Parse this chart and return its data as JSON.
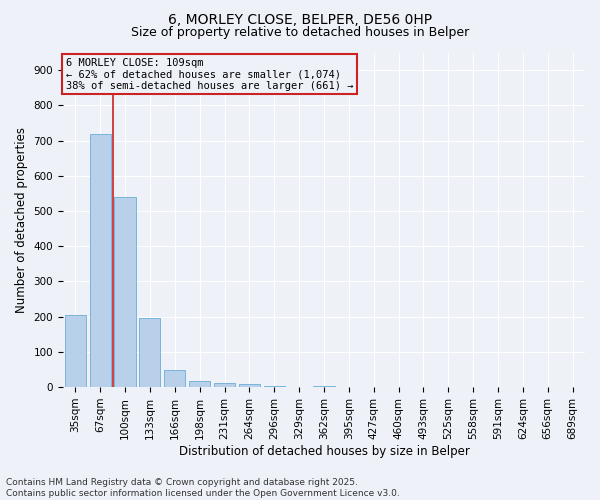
{
  "title_line1": "6, MORLEY CLOSE, BELPER, DE56 0HP",
  "title_line2": "Size of property relative to detached houses in Belper",
  "xlabel": "Distribution of detached houses by size in Belper",
  "ylabel": "Number of detached properties",
  "categories": [
    "35sqm",
    "67sqm",
    "100sqm",
    "133sqm",
    "166sqm",
    "198sqm",
    "231sqm",
    "264sqm",
    "296sqm",
    "329sqm",
    "362sqm",
    "395sqm",
    "427sqm",
    "460sqm",
    "493sqm",
    "525sqm",
    "558sqm",
    "591sqm",
    "624sqm",
    "656sqm",
    "689sqm"
  ],
  "values": [
    205,
    720,
    540,
    195,
    48,
    18,
    13,
    9,
    3,
    0,
    3,
    0,
    0,
    0,
    0,
    0,
    0,
    0,
    0,
    0,
    0
  ],
  "bar_color": "#b8d0ea",
  "bar_edge_color": "#6baed6",
  "vline_color": "#cc2222",
  "annotation_line1": "6 MORLEY CLOSE: 109sqm",
  "annotation_line2": "← 62% of detached houses are smaller (1,074)",
  "annotation_line3": "38% of semi-detached houses are larger (661) →",
  "annotation_box_color": "#cc2222",
  "ylim": [
    0,
    950
  ],
  "yticks": [
    0,
    100,
    200,
    300,
    400,
    500,
    600,
    700,
    800,
    900
  ],
  "background_color": "#eef2f8",
  "grid_color": "#ffffff",
  "footer_line1": "Contains HM Land Registry data © Crown copyright and database right 2025.",
  "footer_line2": "Contains public sector information licensed under the Open Government Licence v3.0.",
  "title_fontsize": 10,
  "subtitle_fontsize": 9,
  "axis_label_fontsize": 8.5,
  "tick_fontsize": 7.5,
  "annotation_fontsize": 7.5,
  "footer_fontsize": 6.5
}
